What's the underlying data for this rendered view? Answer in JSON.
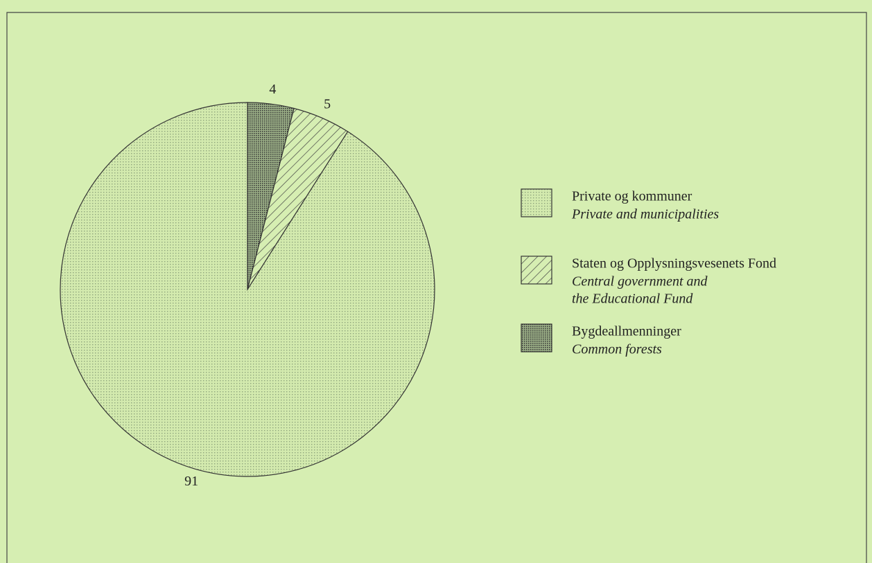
{
  "chart_data": {
    "type": "pie",
    "categories": [
      "Private og kommuner",
      "Staten og Opplysningsvesenets Fond",
      "Bygdeallmenninger"
    ],
    "categories_en": [
      [
        "Private and municipalities"
      ],
      [
        "Central government and",
        "the Educational Fund"
      ],
      [
        "Common forests"
      ]
    ],
    "values": [
      91,
      5,
      4
    ]
  }
}
